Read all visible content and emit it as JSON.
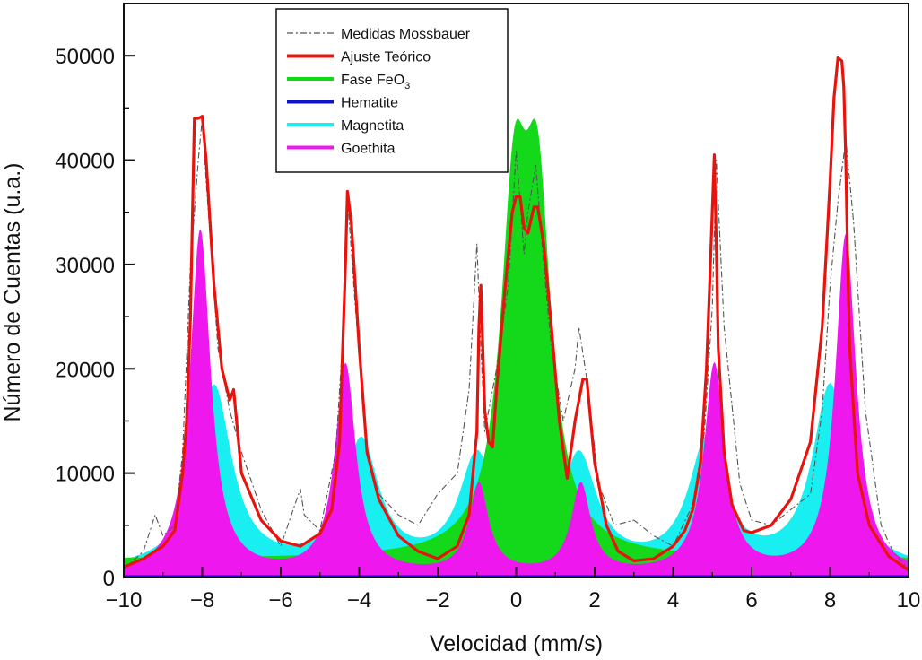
{
  "chart_data": {
    "type": "line",
    "xlabel": "Velocidad (mm/s)",
    "ylabel": "Número de Cuentas (u.a.)",
    "xlim": [
      -10,
      10
    ],
    "ylim": [
      0,
      55000
    ],
    "x_ticks": [
      "−10",
      "−8",
      "−6",
      "−4",
      "−2",
      "0",
      "2",
      "4",
      "6",
      "8",
      "10"
    ],
    "y_ticks": [
      "0",
      "10000",
      "20000",
      "30000",
      "40000",
      "50000"
    ],
    "legend_position": "top-center",
    "grid": false,
    "series": [
      {
        "name": "Medidas Mossbauer",
        "style": "dash-dot",
        "color": "#555555",
        "x": [
          -10,
          -9.5,
          -9.2,
          -9,
          -8.7,
          -8.5,
          -8.3,
          -8.1,
          -8,
          -7.9,
          -7.6,
          -7.3,
          -7,
          -6.5,
          -6,
          -5.5,
          -5.4,
          -5,
          -4.6,
          -4.4,
          -4.3,
          -4.1,
          -3.8,
          -3.5,
          -3,
          -2.5,
          -2,
          -1.5,
          -1.2,
          -1,
          -0.9,
          -0.8,
          -0.5,
          -0.2,
          0,
          0.1,
          0.2,
          0.3,
          0.5,
          0.7,
          0.9,
          1.2,
          1.5,
          1.6,
          1.8,
          2.1,
          2.5,
          3,
          3.5,
          4,
          4.5,
          4.8,
          5,
          5.1,
          5.3,
          5.7,
          6,
          6.5,
          7,
          7.5,
          7.8,
          8,
          8.2,
          8.4,
          8.6,
          8.9,
          9.3,
          9.6,
          10
        ],
        "y": [
          800,
          2500,
          6000,
          4000,
          5000,
          12000,
          30000,
          40000,
          44000,
          38000,
          22000,
          16000,
          12000,
          6500,
          3000,
          8500,
          6000,
          4500,
          12000,
          24000,
          36500,
          26000,
          12000,
          8000,
          6000,
          5000,
          8000,
          10000,
          18000,
          32000,
          22000,
          14000,
          20000,
          28000,
          41000,
          36000,
          31000,
          35000,
          39500,
          30000,
          22000,
          15000,
          20000,
          24000,
          19000,
          9000,
          5000,
          5500,
          4000,
          3000,
          7000,
          14000,
          26000,
          40000,
          24000,
          9000,
          5500,
          5000,
          6500,
          8000,
          16000,
          28000,
          36000,
          42000,
          34000,
          16000,
          5000,
          2500,
          800
        ]
      },
      {
        "name": "Ajuste Teórico",
        "style": "solid",
        "color": "#e8130c",
        "x": [
          -10,
          -9.5,
          -9,
          -8.7,
          -8.5,
          -8.4,
          -8.3,
          -8.2,
          -8.1,
          -8,
          -7.9,
          -7.7,
          -7.5,
          -7.3,
          -7.2,
          -7.1,
          -7,
          -6.5,
          -6,
          -5.5,
          -5,
          -4.7,
          -4.5,
          -4.35,
          -4.3,
          -4.2,
          -4,
          -3.8,
          -3.5,
          -3,
          -2.5,
          -2,
          -1.5,
          -1.2,
          -1,
          -0.95,
          -0.9,
          -0.85,
          -0.8,
          -0.7,
          -0.6,
          -0.5,
          -0.3,
          -0.1,
          0,
          0.1,
          0.2,
          0.3,
          0.45,
          0.55,
          0.7,
          0.9,
          1.1,
          1.3,
          1.5,
          1.7,
          1.8,
          2,
          2.3,
          2.6,
          3,
          3.5,
          4,
          4.3,
          4.5,
          4.7,
          4.85,
          4.95,
          5.05,
          5.1,
          5.15,
          5.3,
          5.5,
          5.8,
          6,
          6.5,
          7,
          7.5,
          7.8,
          8,
          8.1,
          8.2,
          8.3,
          8.35,
          8.4,
          8.45,
          8.5,
          8.7,
          9,
          9.5,
          10
        ],
        "y": [
          1000,
          1800,
          3000,
          4500,
          10000,
          15000,
          25000,
          44000,
          44000,
          44200,
          40000,
          28000,
          20000,
          17000,
          18000,
          14000,
          10000,
          5500,
          3500,
          3000,
          4200,
          6500,
          13000,
          30000,
          37000,
          34000,
          22000,
          12000,
          7500,
          4000,
          2500,
          1800,
          3000,
          6000,
          14000,
          24000,
          28000,
          22000,
          16000,
          13000,
          12500,
          18000,
          27000,
          35000,
          36500,
          36500,
          33500,
          33000,
          35500,
          35500,
          32000,
          24000,
          15000,
          9500,
          15000,
          19000,
          19000,
          11000,
          5000,
          2500,
          1600,
          1800,
          3000,
          4500,
          6500,
          11000,
          20000,
          30000,
          40500,
          32000,
          22000,
          12000,
          7000,
          4500,
          4300,
          5000,
          7500,
          13000,
          24000,
          38000,
          46000,
          49800,
          49500,
          47000,
          40000,
          30000,
          22000,
          10000,
          5000,
          2000,
          700
        ]
      }
    ],
    "legend": [
      {
        "name": "Medidas Mossbauer",
        "color": "#555555",
        "style": "dash-dot"
      },
      {
        "name": "Ajuste Teórico",
        "color": "#e8130c",
        "style": "solid"
      },
      {
        "name": "Fase FeO",
        "subscript": "3",
        "color": "#13d91a",
        "style": "solid"
      },
      {
        "name": "Hematite",
        "color": "#1212c8",
        "style": "solid"
      },
      {
        "name": "Magnetita",
        "color": "#19eef0",
        "style": "solid"
      },
      {
        "name": "Goethita",
        "color": "#ee18ee",
        "style": "solid"
      }
    ],
    "filled_components": [
      {
        "name": "Magnetita",
        "color": "#19eef0",
        "baseline": 0,
        "peaks": [
          {
            "center": -7.7,
            "height": 17500,
            "width": 0.55
          },
          {
            "center": -3.95,
            "height": 12000,
            "width": 0.55
          },
          {
            "center": -1.0,
            "height": 10500,
            "width": 0.55
          },
          {
            "center": 1.6,
            "height": 10500,
            "width": 0.55
          },
          {
            "center": 4.85,
            "height": 12000,
            "width": 0.55
          },
          {
            "center": 8.0,
            "height": 17500,
            "width": 0.55
          }
        ],
        "background": 600
      },
      {
        "name": "Fase FeO3",
        "color": "#13d91a",
        "peaks": [
          {
            "center": -0.05,
            "height": 31000,
            "width": 0.42
          },
          {
            "center": 0.55,
            "height": 31000,
            "width": 0.42
          }
        ],
        "background": 1800
      },
      {
        "name": "Goethita",
        "color": "#ee18ee",
        "peaks": [
          {
            "center": -8.05,
            "height": 33000,
            "width": 0.32
          },
          {
            "center": -4.35,
            "height": 20000,
            "width": 0.32
          },
          {
            "center": -0.95,
            "height": 8500,
            "width": 0.3
          },
          {
            "center": 1.65,
            "height": 8500,
            "width": 0.3
          },
          {
            "center": 5.05,
            "height": 20000,
            "width": 0.32
          },
          {
            "center": 8.4,
            "height": 32500,
            "width": 0.32
          }
        ],
        "background": 200
      },
      {
        "name": "Hematite",
        "color": "#1212c8",
        "constant": 0
      }
    ]
  }
}
